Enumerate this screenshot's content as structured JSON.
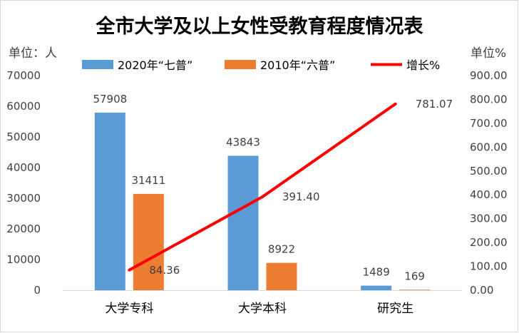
{
  "chart_data": {
    "type": "bar",
    "title": "全市大学及以上女性受教育程度情况表",
    "ylabel_left": "单位：人",
    "ylabel_right": "单位%",
    "categories": [
      "大学专科",
      "大学本科",
      "研究生"
    ],
    "series": [
      {
        "name": "2020年“七普”",
        "kind": "bar",
        "axis": "left",
        "color": "#5b9bd5",
        "values": [
          57908,
          43843,
          1489
        ],
        "labels": [
          "57908",
          "43843",
          "1489"
        ]
      },
      {
        "name": "2010年“六普”",
        "kind": "bar",
        "axis": "left",
        "color": "#ed7d31",
        "values": [
          31411,
          8922,
          169
        ],
        "labels": [
          "31411",
          "8922",
          "169"
        ]
      },
      {
        "name": "增长%",
        "kind": "line",
        "axis": "right",
        "color": "#ff0000",
        "values": [
          84.36,
          391.4,
          781.07
        ],
        "labels": [
          "84.36",
          "391.40",
          "781.07"
        ]
      }
    ],
    "ylim_left": [
      0,
      70000
    ],
    "yticks_left": [
      "0",
      "10000",
      "20000",
      "30000",
      "40000",
      "50000",
      "60000",
      "70000"
    ],
    "ylim_right": [
      0,
      900
    ],
    "yticks_right": [
      "0.00",
      "100.00",
      "200.00",
      "300.00",
      "400.00",
      "500.00",
      "600.00",
      "700.00",
      "800.00",
      "900.00"
    ],
    "grid": false,
    "legend_position": "top"
  }
}
